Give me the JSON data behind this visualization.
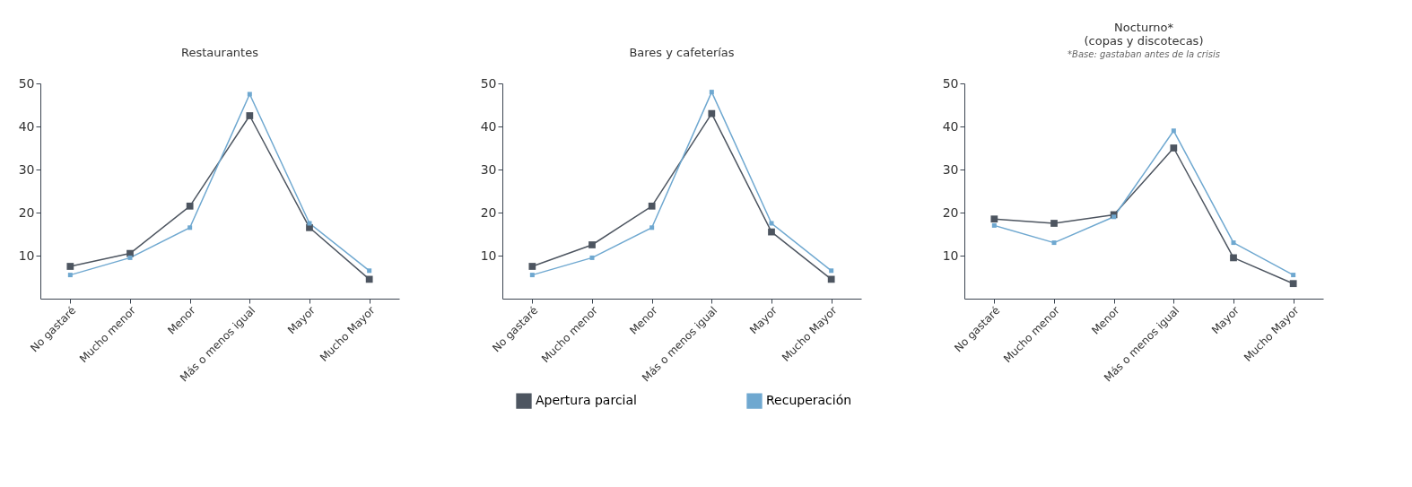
{
  "chart_data": [
    {
      "type": "line",
      "title": "Restaurantes",
      "categories": [
        "No gastaré",
        "Mucho menor",
        "Menor",
        "Más o menos igual",
        "Mayor",
        "Mucho Mayor"
      ],
      "ylim": [
        0,
        50
      ],
      "yticks": [
        10,
        20,
        30,
        40,
        50
      ],
      "grid": false,
      "marker": "square",
      "line_style": "solid",
      "legend": "bottom",
      "series": [
        {
          "name": "Apertura parcial",
          "color": "#4d5560",
          "values": [
            7.5,
            10.5,
            21.5,
            42.5,
            16.5,
            4.5
          ]
        },
        {
          "name": "Recuperación",
          "color": "#6fa8d0",
          "values": [
            5.5,
            9.5,
            16.5,
            47.5,
            17.5,
            6.5
          ]
        }
      ]
    },
    {
      "type": "line",
      "title": "Bares y cafeterías",
      "categories": [
        "No gastaré",
        "Mucho menor",
        "Menor",
        "Más o menos igual",
        "Mayor",
        "Mucho Mayor"
      ],
      "ylim": [
        0,
        50
      ],
      "yticks": [
        10,
        20,
        30,
        40,
        50
      ],
      "grid": false,
      "marker": "square",
      "line_style": "solid",
      "legend": "bottom",
      "series": [
        {
          "name": "Apertura parcial",
          "color": "#4d5560",
          "values": [
            7.5,
            12.5,
            21.5,
            43,
            15.5,
            4.5
          ]
        },
        {
          "name": "Recuperación",
          "color": "#6fa8d0",
          "values": [
            5.5,
            9.5,
            16.5,
            48,
            17.5,
            6.5
          ]
        }
      ]
    },
    {
      "type": "line",
      "title": "Nocturno*\n(copas y discotecas)",
      "subtitle": "*Base: gastaban antes de la crisis",
      "categories": [
        "No gastaré",
        "Mucho menor",
        "Menor",
        "Más o menos igual",
        "Mayor",
        "Mucho Mayor"
      ],
      "ylim": [
        0,
        50
      ],
      "yticks": [
        10,
        20,
        30,
        40,
        50
      ],
      "grid": false,
      "marker": "square",
      "line_style": "solid",
      "legend": "bottom",
      "series": [
        {
          "name": "Apertura parcial",
          "color": "#4d5560",
          "values": [
            18.5,
            17.5,
            19.5,
            35,
            9.5,
            3.5
          ]
        },
        {
          "name": "Recuperación",
          "color": "#6fa8d0",
          "values": [
            17,
            13,
            19,
            39,
            13,
            5.5
          ]
        }
      ]
    }
  ]
}
